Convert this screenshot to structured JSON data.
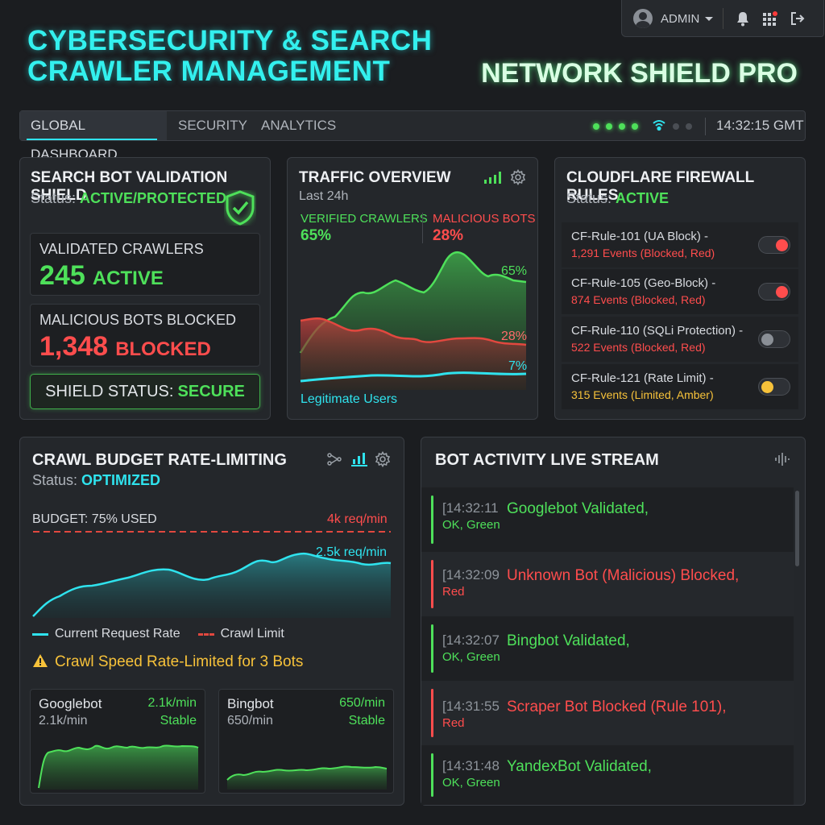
{
  "header": {
    "title": "CYBERSECURITY & SEARCH CRAWLER MANAGEMENT",
    "brand": "NETWORK SHIELD PRO",
    "user": "ADMIN"
  },
  "nav": {
    "tabs": [
      {
        "label": "GLOBAL DASHBOARD",
        "active": true
      },
      {
        "label": "SECURITY",
        "active": false
      },
      {
        "label": "ANALYTICS",
        "active": false
      }
    ],
    "time": "14:32:15 GMT"
  },
  "validation": {
    "title": "SEARCH BOT VALIDATION SHIELD",
    "status_label": "Status:",
    "status_value": "ACTIVE/PROTECTED",
    "crawlers_label": "VALIDATED CRAWLERS",
    "crawlers_count": "245",
    "crawlers_suffix": "ACTIVE",
    "blocked_label": "MALICIOUS BOTS BLOCKED",
    "blocked_count": "1,348",
    "blocked_suffix": "BLOCKED",
    "shield_label": "SHIELD STATUS:",
    "shield_value": "SECURE"
  },
  "traffic": {
    "title": "TRAFFIC OVERVIEW",
    "subtitle": "Last 24h",
    "verified_label": "VERIFIED CRAWLERS",
    "verified_value": "65%",
    "malicious_label": "MALICIOUS BOTS",
    "malicious_value": "28%",
    "legit_label": "Legitimate Users",
    "end_labels": [
      "65%",
      "28%",
      "7%"
    ]
  },
  "firewall": {
    "title": "CLOUDFLARE FIREWALL RULES",
    "status_label": "Status:",
    "status_value": "ACTIVE",
    "rules": [
      {
        "name": "CF-Rule-101 (UA Block) -",
        "detail": "1,291 Events (Blocked, Red)",
        "color": "#ff4d4d"
      },
      {
        "name": "CF-Rule-105 (Geo-Block) -",
        "detail": "874 Events (Blocked, Red)",
        "color": "#ff4d4d"
      },
      {
        "name": "CF-Rule-110 (SQLi Protection) -",
        "detail": "522 Events (Blocked, Red)",
        "color": "#ff4d4d"
      },
      {
        "name": "CF-Rule-121 (Rate Limit) -",
        "detail": "315 Events (Limited, Amber)",
        "color": "#f7c23a"
      }
    ],
    "toggle_states": [
      "on-red",
      "on-red",
      "off",
      "on-amber"
    ]
  },
  "crawl": {
    "title": "CRAWL BUDGET RATE-LIMITING",
    "status_label": "Status:",
    "status_value": "OPTIMIZED",
    "budget_label": "BUDGET: 75% USED",
    "limit_label": "4k req/min",
    "current_label": "2.5k req/min",
    "legend_current": "Current Request Rate",
    "legend_limit": "Crawl Limit",
    "warning": "Crawl Speed Rate-Limited for 3 Bots",
    "bots": [
      {
        "name": "Googlebot",
        "rate": "2.1k/min",
        "rate_right": "2.1k/min",
        "state": "Stable"
      },
      {
        "name": "Bingbot",
        "rate": "650/min",
        "rate_right": "650/min",
        "state": "Stable"
      }
    ]
  },
  "stream": {
    "title": "BOT ACTIVITY LIVE STREAM",
    "events": [
      {
        "time": "[14:32:11",
        "message": "Googlebot Validated,",
        "sub": "OK, Green",
        "color": "#4ee05a"
      },
      {
        "time": "[14:32:09",
        "message": "Unknown Bot (Malicious) Blocked,",
        "sub": "Red",
        "color": "#ff4d4d"
      },
      {
        "time": "[14:32:07",
        "message": "Bingbot Validated,",
        "sub": "OK, Green",
        "color": "#4ee05a"
      },
      {
        "time": "[14:31:55",
        "message": "Scraper Bot Blocked (Rule 101),",
        "sub": "Red",
        "color": "#ff4d4d"
      },
      {
        "time": "[14:31:48",
        "message": "YandexBot Validated,",
        "sub": "OK, Green",
        "color": "#4ee05a"
      }
    ]
  },
  "colors": {
    "accent_cyan": "#2fe3ee",
    "ok_green": "#4ee05a",
    "alert_red": "#ff4d4d",
    "warn_amber": "#f7c23a"
  }
}
